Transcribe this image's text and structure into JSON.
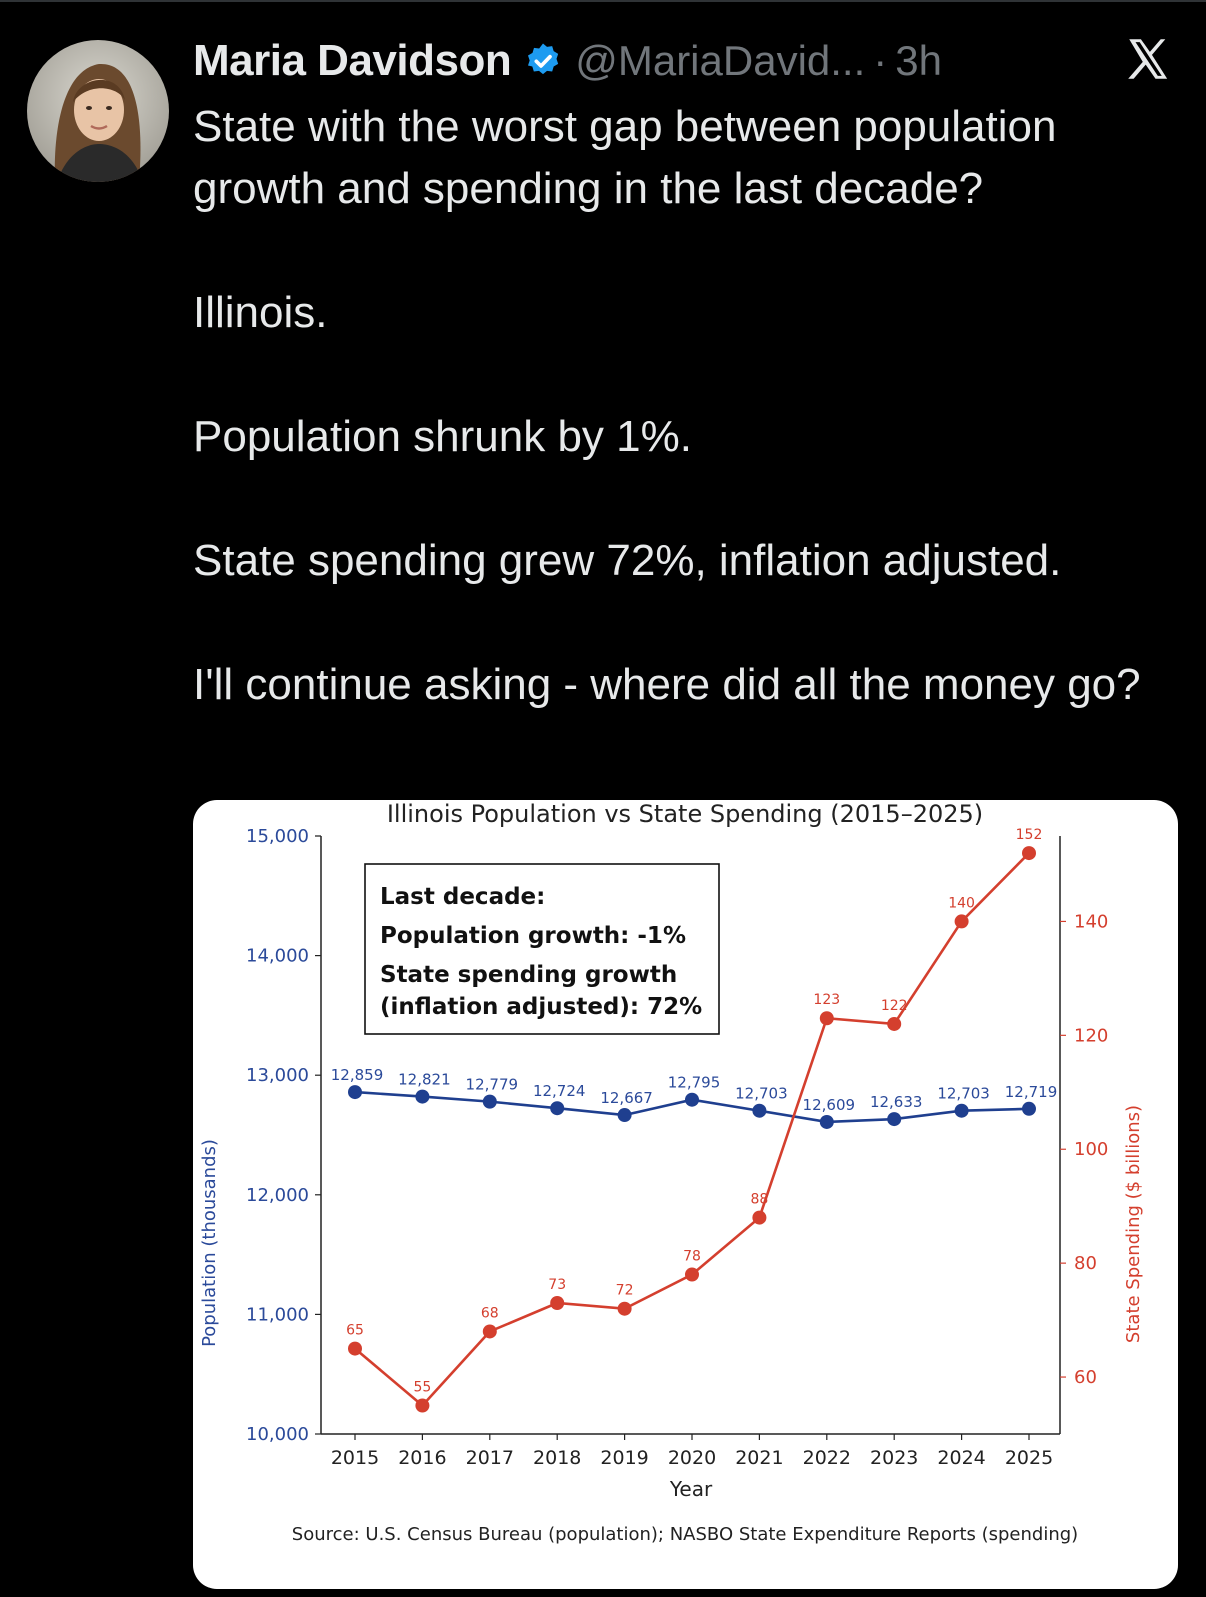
{
  "tweet": {
    "author": {
      "name": "Maria Davidson",
      "handle": "@MariaDavid...",
      "separator": "·",
      "time": "3h",
      "avatar_icon": "avatar-photo",
      "verified_icon": "verified-badge-icon"
    },
    "platform_icon": "x-logo-icon",
    "paragraphs": [
      "State with the worst gap between population growth and spending in the last decade?",
      "Illinois.",
      "Population shrunk by 1%.",
      "State spending grew 72%, inflation adjusted.",
      "I'll continue asking - where did all the money go?"
    ]
  },
  "chart_data": {
    "type": "line",
    "title": "Illinois Population vs State Spending (2015–2025)",
    "xlabel": "Year",
    "ylabel_left": "Population (thousands)",
    "ylabel_right": "State Spending ($ billions)",
    "x": [
      2015,
      2016,
      2017,
      2018,
      2019,
      2020,
      2021,
      2022,
      2023,
      2024,
      2025
    ],
    "ylim_left": [
      10000,
      15000
    ],
    "ylim_right": [
      50,
      155
    ],
    "yticks_left": [
      "10,000",
      "11,000",
      "12,000",
      "13,000",
      "14,000",
      "15,000"
    ],
    "yticks_left_values": [
      10000,
      11000,
      12000,
      13000,
      14000,
      15000
    ],
    "yticks_right": [
      60,
      80,
      100,
      120,
      140
    ],
    "series": [
      {
        "name": "Population (thousands)",
        "axis": "left",
        "color": "#1f3f8f",
        "values": [
          12859,
          12821,
          12779,
          12724,
          12667,
          12795,
          12703,
          12609,
          12633,
          12703,
          12719
        ],
        "labels": [
          "12,859",
          "12,821",
          "12,779",
          "12,724",
          "12,667",
          "12,795",
          "12,703",
          "12,609",
          "12,633",
          "12,703",
          "12,719"
        ]
      },
      {
        "name": "State Spending ($ billions)",
        "axis": "right",
        "color": "#d43f2e",
        "values": [
          65,
          55,
          68,
          73,
          72,
          78,
          88,
          123,
          122,
          140,
          152
        ],
        "labels": [
          "65",
          "55",
          "68",
          "73",
          "72",
          "78",
          "88",
          "123",
          "122",
          "140",
          "152"
        ]
      }
    ],
    "annotation_box": {
      "lines": [
        "Last decade:",
        "Population growth: -1%",
        "State spending growth",
        "(inflation adjusted): 72%"
      ]
    },
    "source": "Source: U.S. Census Bureau (population); NASBO State Expenditure Reports (spending)"
  }
}
